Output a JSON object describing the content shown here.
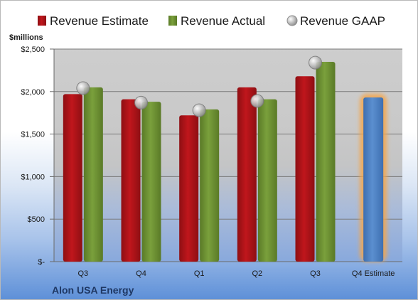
{
  "chart_data": {
    "type": "bar",
    "unit_label": "$millions",
    "company": "Alon USA Energy",
    "categories": [
      "Q3",
      "Q4",
      "Q1",
      "Q2",
      "Q3",
      "Q4 Estimate"
    ],
    "y_ticks": [
      "$-",
      "$500",
      "$1,000",
      "$1,500",
      "$2,000",
      "$2,500"
    ],
    "ylim": [
      0,
      2500
    ],
    "grid": true,
    "legend_position": "top",
    "series": [
      {
        "name": "Revenue Estimate",
        "kind": "bar",
        "color": "#c0161c",
        "values": [
          1970,
          1910,
          1720,
          2050,
          2180,
          null
        ]
      },
      {
        "name": "Revenue Actual",
        "kind": "bar",
        "color": "#7aa03c",
        "values": [
          2050,
          1880,
          1790,
          1910,
          2350,
          null
        ]
      },
      {
        "name": "Revenue GAAP",
        "kind": "marker",
        "color": "#b4b4b4",
        "values": [
          2040,
          1870,
          1780,
          1890,
          2340,
          null
        ]
      }
    ],
    "q4_estimate": {
      "value": 1930,
      "color": "#5b8fd0",
      "glow_color": "#f5a54a"
    }
  }
}
